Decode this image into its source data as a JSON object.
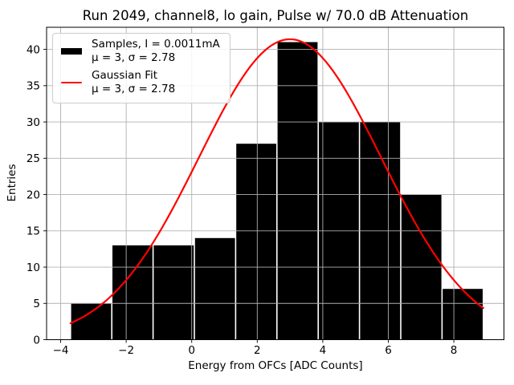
{
  "chart_data": {
    "type": "bar",
    "subtype": "histogram-with-gaussian-fit",
    "title": "Run 2049, channel8, lo gain, Pulse w/ 70.0 dB Attenuation",
    "xlabel": "Energy from OFCs [ADC Counts]",
    "ylabel": "Entries",
    "xlim": [
      -4.43,
      9.53
    ],
    "ylim": [
      0,
      43.05
    ],
    "xticks": [
      -4,
      -2,
      0,
      2,
      4,
      6,
      8
    ],
    "xtick_labels": [
      "−4",
      "−2",
      "0",
      "2",
      "4",
      "6",
      "8"
    ],
    "yticks": [
      0,
      5,
      10,
      15,
      20,
      25,
      30,
      35,
      40
    ],
    "ytick_labels": [
      "0",
      "5",
      "10",
      "15",
      "20",
      "25",
      "30",
      "35",
      "40"
    ],
    "grid": true,
    "grid_color": "#b0b0b0",
    "background_color": "#ffffff",
    "histogram": {
      "bin_edges": [
        -3.7,
        -2.44,
        -1.18,
        0.08,
        1.34,
        2.6,
        3.86,
        5.12,
        6.38,
        7.64,
        8.9
      ],
      "bin_width": 1.26,
      "counts": [
        5,
        13,
        13,
        14,
        27,
        41,
        30,
        30,
        20,
        7
      ],
      "total_entries": 200,
      "color": "#000000"
    },
    "fit_curve": {
      "shape": "gaussian",
      "mu": 3,
      "sigma": 2.78,
      "amplitude": 41.4,
      "x_start": -3.7,
      "x_end": 8.9,
      "color": "#ff0000"
    },
    "legend": {
      "position": "upper-left",
      "entries": [
        {
          "key": "patch",
          "color": "#000000",
          "lines": [
            "Samples, I = 0.0011mA",
            "μ = 3, σ = 2.78"
          ]
        },
        {
          "key": "line",
          "color": "#ff0000",
          "lines": [
            "Gaussian Fit",
            "μ = 3, σ = 2.78"
          ]
        }
      ]
    }
  }
}
